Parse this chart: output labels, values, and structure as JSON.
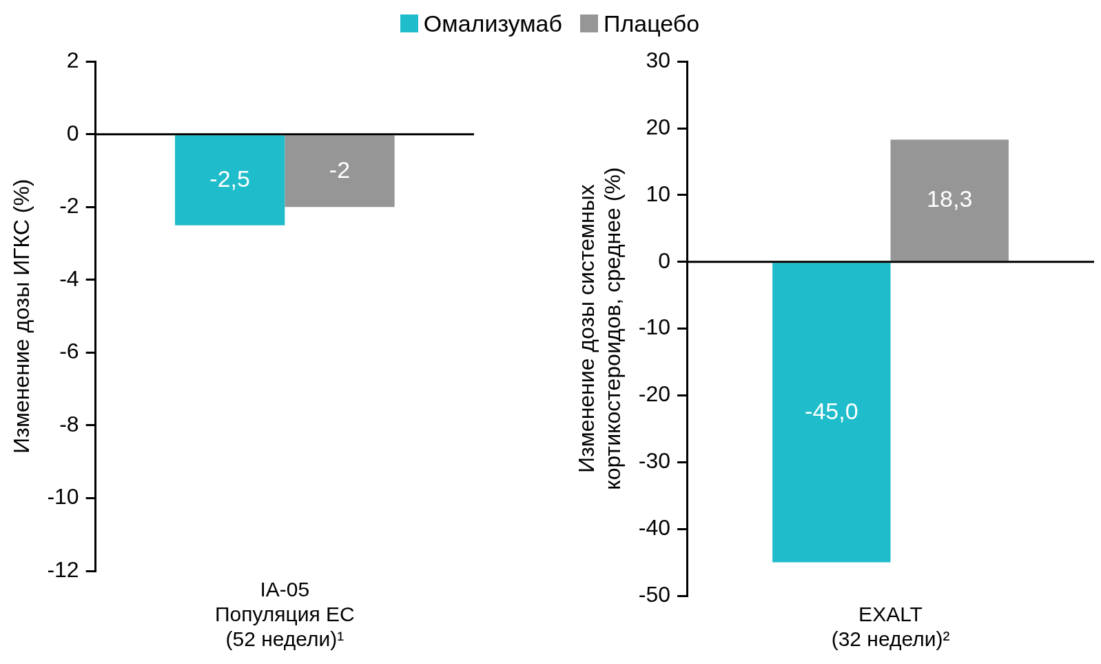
{
  "chart_data": [
    {
      "type": "bar",
      "categories": [
        "IA-05\nПопуляция ЕС\n(52 недели)¹"
      ],
      "ylabel": "Изменение дозы ИГКС (%)",
      "ylim": [
        -12,
        2
      ],
      "yticks": [
        -12,
        -10,
        -8,
        -6,
        -4,
        -2,
        0,
        2
      ],
      "grid": false,
      "legend": "top",
      "ref_lines": [
        {
          "axis": "y",
          "value": 0,
          "color": "#000000"
        }
      ],
      "series": [
        {
          "name": "Омализумаб",
          "color": "#1fbccb",
          "values": [
            -2.5
          ],
          "value_labels": [
            "-2,5"
          ]
        },
        {
          "name": "Плацебо",
          "color": "#969696",
          "values": [
            -2
          ],
          "value_labels": [
            "-2"
          ]
        }
      ]
    },
    {
      "type": "bar",
      "categories": [
        "EXALT\n(32 недели)²"
      ],
      "ylabel": "Изменение дозы системных\nкортикостероидов, среднее (%)",
      "ylim": [
        -50,
        30
      ],
      "yticks": [
        -50,
        -40,
        -30,
        -20,
        -10,
        0,
        10,
        20,
        30
      ],
      "grid": false,
      "ref_lines": [
        {
          "axis": "y",
          "value": 0,
          "color": "#000000"
        }
      ],
      "series": [
        {
          "color": "#1fbccb",
          "values": [
            -45.0
          ],
          "value_labels": [
            "-45,0"
          ]
        },
        {
          "color": "#969696",
          "values": [
            18.3
          ],
          "value_labels": [
            "18,3"
          ]
        }
      ]
    }
  ]
}
